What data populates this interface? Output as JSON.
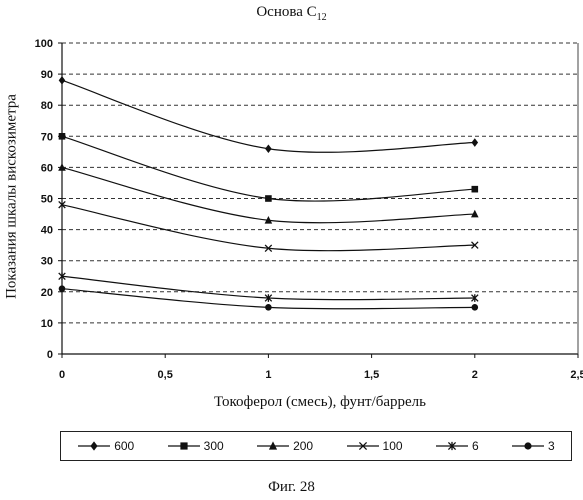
{
  "title": "Основа C",
  "title_sub": "12",
  "caption": "Фиг. 28",
  "chart_data": {
    "type": "line",
    "title": "Основа C12",
    "xlabel": "Токоферол (смесь), фунт/баррель",
    "ylabel": "Показания шкалы вискозиметра",
    "xlim": [
      0,
      2.5
    ],
    "ylim": [
      0,
      100
    ],
    "x_ticks": [
      "0",
      "0,5",
      "1",
      "1,5",
      "2",
      "2,5"
    ],
    "x_tick_values": [
      0,
      0.5,
      1,
      1.5,
      2,
      2.5
    ],
    "y_ticks": [
      "0",
      "10",
      "20",
      "30",
      "40",
      "50",
      "60",
      "70",
      "80",
      "90",
      "100"
    ],
    "y_tick_values": [
      0,
      10,
      20,
      30,
      40,
      50,
      60,
      70,
      80,
      90,
      100
    ],
    "grid": "horizontal dashed",
    "legend_position": "bottom",
    "x": [
      0,
      1,
      2
    ],
    "series": [
      {
        "name": "600",
        "marker": "diamond",
        "values": [
          88,
          66,
          68
        ]
      },
      {
        "name": "300",
        "marker": "square",
        "values": [
          70,
          50,
          53
        ]
      },
      {
        "name": "200",
        "marker": "triangle",
        "values": [
          60,
          43,
          45
        ]
      },
      {
        "name": "100",
        "marker": "x",
        "values": [
          48,
          34,
          35
        ]
      },
      {
        "name": "6",
        "marker": "asterisk",
        "values": [
          25,
          18,
          18
        ]
      },
      {
        "name": "3",
        "marker": "circle",
        "values": [
          21,
          15,
          15
        ]
      }
    ]
  }
}
